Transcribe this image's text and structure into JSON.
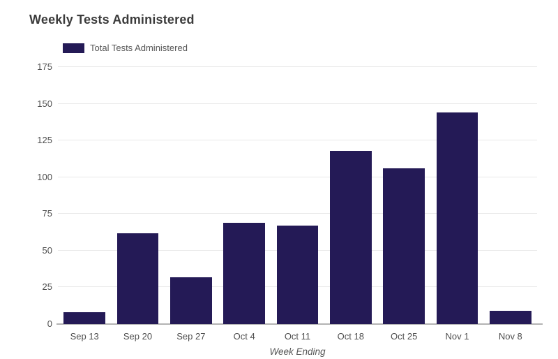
{
  "title": "Weekly Tests Administered",
  "legend": {
    "label": "Total Tests Administered"
  },
  "chart_data": {
    "type": "bar",
    "title": "Weekly Tests Administered",
    "series_name": "Total Tests Administered",
    "categories": [
      "Sep 13",
      "Sep 20",
      "Sep 27",
      "Oct 4",
      "Oct 11",
      "Oct 18",
      "Oct 25",
      "Nov 1",
      "Nov 8"
    ],
    "values": [
      8,
      62,
      32,
      69,
      67,
      118,
      106,
      144,
      9
    ],
    "xlabel": "Week Ending",
    "ylabel": "",
    "ylim": [
      0,
      175
    ],
    "yticks": [
      0,
      25,
      50,
      75,
      100,
      125,
      150,
      175
    ],
    "grid": true,
    "legend_position": "top-left",
    "bar_color": "#241a56"
  },
  "colors": {
    "bar": "#241a56",
    "title_text": "#3b3b3b",
    "tick_text": "#4f4f4f",
    "legend_text": "#565656",
    "gridline": "#e8e8e8",
    "axis_line": "#b3b3b3",
    "background": "#ffffff"
  }
}
